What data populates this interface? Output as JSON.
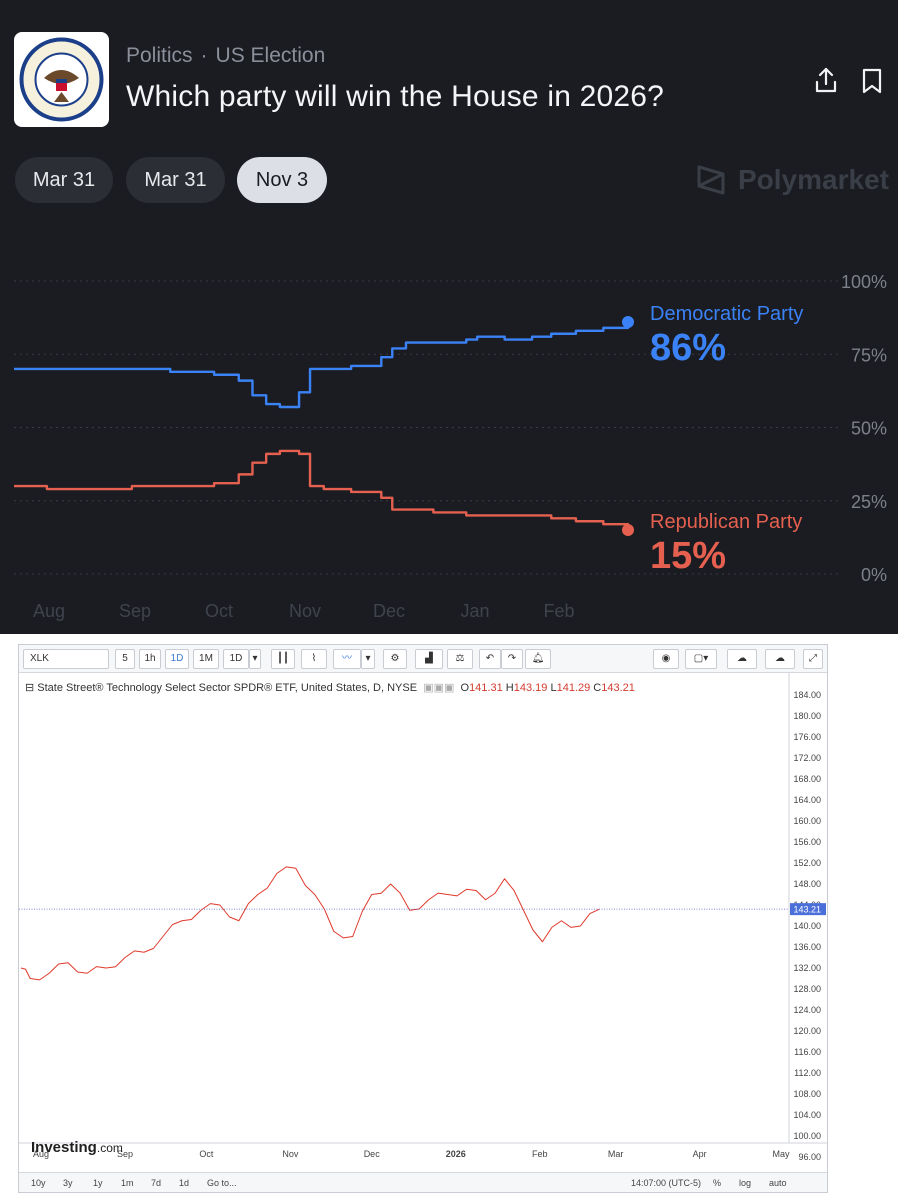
{
  "polymarket": {
    "breadcrumb": {
      "category": "Politics",
      "separator": "·",
      "subcategory": "US Election"
    },
    "title": "Which party will win the House in 2026?",
    "logo_text": "U.S. HOUSE OF REPRESENTATIVES",
    "tabs": [
      {
        "label": "Mar 31",
        "active": false
      },
      {
        "label": "Mar 31",
        "active": false
      },
      {
        "label": "Nov 3",
        "active": true
      }
    ],
    "brand": "Polymarket",
    "icons": [
      "share-icon",
      "bookmark-icon"
    ]
  },
  "investing": {
    "symbol": "XLK",
    "toolbar": {
      "intervals": [
        "5",
        "1h",
        "1D",
        "1M",
        "1D"
      ],
      "active_interval": "1D"
    },
    "legend": {
      "name": "State Street® Technology Select Sector SPDR® ETF, United States, D, NYSE",
      "o_label": "O",
      "o": "141.31",
      "h_label": "H",
      "h": "143.19",
      "l_label": "L",
      "l": "141.29",
      "c_label": "C",
      "c": "143.21"
    },
    "brand": "Investing",
    "brand_suffix": ".com",
    "bottombar": {
      "ranges": [
        "10y",
        "3y",
        "1y",
        "1m",
        "7d",
        "1d"
      ],
      "goto": "Go to...",
      "time": "14:07:00 (UTC-5)",
      "pct": "%",
      "log": "log",
      "auto": "auto"
    }
  },
  "chart_data": [
    {
      "type": "line",
      "title": "",
      "x_ticks": [
        "Aug",
        "Sep",
        "Oct",
        "Nov",
        "Dec",
        "Jan",
        "Feb"
      ],
      "y_ticks": [
        "100%",
        "75%",
        "50%",
        "25%",
        "0%"
      ],
      "ylim": [
        0,
        100
      ],
      "grid": true,
      "series": [
        {
          "name": "Democratic Party",
          "label": "86%",
          "color": "#3b82f6",
          "x": [
            "Jul 20",
            "Aug 1",
            "Aug 15",
            "Sep 1",
            "Sep 15",
            "Oct 1",
            "Oct 10",
            "Oct 15",
            "Oct 20",
            "Oct 25",
            "Nov 1",
            "Nov 5",
            "Nov 10",
            "Nov 20",
            "Dec 1",
            "Dec 5",
            "Dec 10",
            "Dec 20",
            "Jan 1",
            "Jan 5",
            "Jan 15",
            "Jan 25",
            "Feb 1",
            "Feb 10",
            "Feb 20",
            "Mar 1"
          ],
          "values": [
            70,
            70,
            70,
            70,
            69,
            68,
            66,
            61,
            58,
            57,
            62,
            70,
            70,
            71,
            74,
            77,
            79,
            79,
            80,
            81,
            80,
            81,
            82,
            83,
            84,
            86
          ]
        },
        {
          "name": "Republican Party",
          "label": "15%",
          "color": "#e5604f",
          "x": [
            "Jul 20",
            "Aug 1",
            "Aug 15",
            "Sep 1",
            "Sep 15",
            "Oct 1",
            "Oct 10",
            "Oct 15",
            "Oct 20",
            "Oct 25",
            "Nov 1",
            "Nov 5",
            "Nov 10",
            "Nov 20",
            "Dec 1",
            "Dec 5",
            "Dec 10",
            "Dec 20",
            "Jan 1",
            "Jan 5",
            "Jan 15",
            "Jan 25",
            "Feb 1",
            "Feb 10",
            "Feb 20",
            "Mar 1"
          ],
          "values": [
            30,
            29,
            29,
            30,
            30,
            31,
            34,
            38,
            41,
            42,
            41,
            30,
            29,
            28,
            26,
            22,
            22,
            21,
            20,
            20,
            20,
            20,
            19,
            18,
            17,
            15
          ]
        }
      ]
    },
    {
      "type": "line",
      "title": "State Street® Technology Select Sector SPDR® ETF, United States, D, NYSE",
      "x_ticks": [
        "Aug",
        "Sep",
        "Oct",
        "Nov",
        "Dec",
        "2026",
        "Feb",
        "Mar",
        "Apr",
        "May"
      ],
      "y_ticks": [
        184,
        180,
        176,
        172,
        168,
        164,
        160,
        156,
        152,
        148,
        144,
        140,
        136,
        132,
        128,
        124,
        120,
        116,
        112,
        108,
        104,
        100,
        96
      ],
      "ylim": [
        94,
        186
      ],
      "last_price": "143.21",
      "series": [
        {
          "name": "",
          "color": "#e0392b",
          "x": [
            "Jul 21",
            "Jul 28",
            "Aug 4",
            "Aug 11",
            "Aug 18",
            "Aug 25",
            "Sep 1",
            "Sep 8",
            "Sep 15",
            "Sep 22",
            "Sep 29",
            "Oct 6",
            "Oct 13",
            "Oct 20",
            "Oct 27",
            "Nov 3",
            "Nov 10",
            "Nov 17",
            "Nov 24",
            "Dec 1",
            "Dec 8",
            "Dec 15",
            "Dec 22",
            "Dec 29",
            "Jan 5",
            "Jan 12",
            "Jan 19",
            "Jan 26",
            "Feb 2",
            "Feb 9",
            "Feb 16",
            "Feb 23"
          ],
          "values": [
            132,
            130,
            131,
            133,
            131,
            132,
            134,
            135,
            138,
            141,
            143,
            144,
            141,
            146,
            150,
            151,
            146,
            139,
            138,
            146,
            148,
            143,
            145,
            146,
            147,
            145,
            149,
            143,
            137,
            141,
            140,
            143.21
          ]
        }
      ]
    }
  ]
}
